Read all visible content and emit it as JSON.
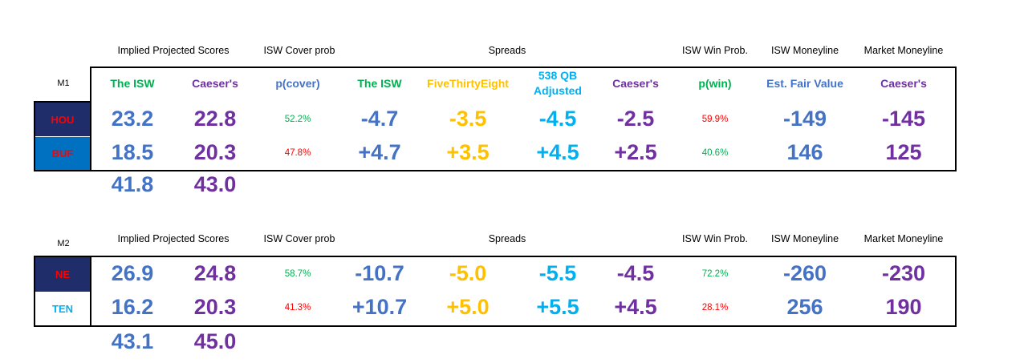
{
  "headers": {
    "implied": "Implied Projected Scores",
    "cover": "ISW Cover prob",
    "spreads": "Spreads",
    "winprob": "ISW Win Prob.",
    "isw_ml": "ISW Moneyline",
    "market_ml": "Market Moneyline"
  },
  "subheaders": {
    "isw": "The ISW",
    "caesers": "Caeser's",
    "pcover": "p(cover)",
    "spread_isw": "The ISW",
    "fte": "FiveThirtyEight",
    "qb_line1": "538 QB",
    "qb_line2": "Adjusted",
    "spread_caesers": "Caeser's",
    "pwin": "p(win)",
    "fair": "Est. Fair Value",
    "ml_caesers": "Caeser's"
  },
  "matchups": [
    {
      "label": "M1",
      "teams": [
        {
          "name": "HOU",
          "isw": "23.2",
          "caesers": "22.8",
          "pcover": "52.2%",
          "sp_isw": "-4.7",
          "sp_538": "-3.5",
          "sp_qb": "-4.5",
          "sp_caesers": "-2.5",
          "pwin": "59.9%",
          "fair": "-149",
          "ml": "-145"
        },
        {
          "name": "BUF",
          "isw": "18.5",
          "caesers": "20.3",
          "pcover": "47.8%",
          "sp_isw": "+4.7",
          "sp_538": "+3.5",
          "sp_qb": "+4.5",
          "sp_caesers": "+2.5",
          "pwin": "40.6%",
          "fair": "146",
          "ml": "125"
        }
      ],
      "total_isw": "41.8",
      "total_caesers": "43.0"
    },
    {
      "label": "M2",
      "teams": [
        {
          "name": "NE",
          "isw": "26.9",
          "caesers": "24.8",
          "pcover": "58.7%",
          "sp_isw": "-10.7",
          "sp_538": "-5.0",
          "sp_qb": "-5.5",
          "sp_caesers": "-4.5",
          "pwin": "72.2%",
          "fair": "-260",
          "ml": "-230"
        },
        {
          "name": "TEN",
          "isw": "16.2",
          "caesers": "20.3",
          "pcover": "41.3%",
          "sp_isw": "+10.7",
          "sp_538": "+5.0",
          "sp_qb": "+5.5",
          "sp_caesers": "+4.5",
          "pwin": "28.1%",
          "fair": "256",
          "ml": "190"
        }
      ],
      "total_isw": "43.1",
      "total_caesers": "45.0"
    }
  ],
  "colors": {
    "hou_bg": "#1f2d6b",
    "hou_text": "#ff0000",
    "buf_bg": "#0070c0",
    "buf_text": "#ff0000",
    "ne_bg": "#1f2d6b",
    "ne_text": "#ff0000",
    "ten_bg": "#ffffff",
    "ten_text": "#00b0f0"
  }
}
